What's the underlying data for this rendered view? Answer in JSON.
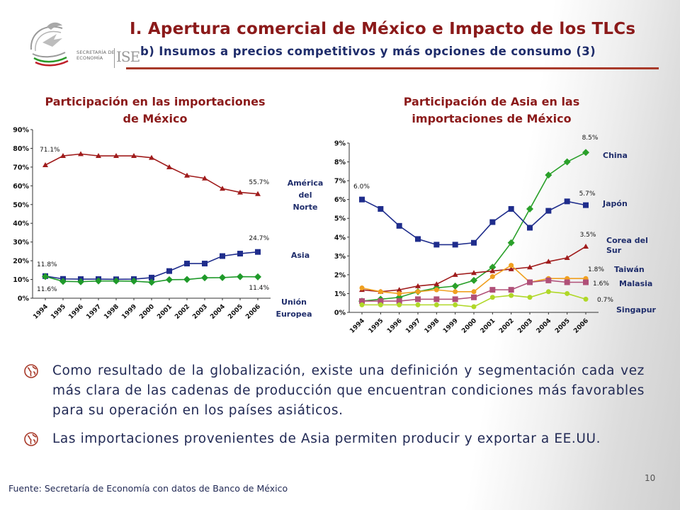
{
  "header": {
    "title": "I. Apertura comercial de México e Impacto de los TLCs",
    "subtitle": "b) Insumos a precios competitivos y más opciones de consumo (3)"
  },
  "logo": {
    "secretaria_line1": "SECRETARÍA DE",
    "secretaria_line2": "ECONOMÍA",
    "ise": "ISE"
  },
  "chart_data": [
    {
      "type": "line",
      "title": "Participación en las importaciones de México",
      "title_lines": [
        "Participación en las importaciones",
        "de México"
      ],
      "x": [
        "1994",
        "1995",
        "1996",
        "1997",
        "1998",
        "1999",
        "2000",
        "2001",
        "2002",
        "2003",
        "2004",
        "2005",
        "2006"
      ],
      "ylim": [
        0,
        90
      ],
      "yticks": [
        "0%",
        "10%",
        "20%",
        "30%",
        "40%",
        "50%",
        "60%",
        "70%",
        "80%",
        "90%"
      ],
      "grid": false,
      "series": [
        {
          "name": "América del Norte",
          "label_lines": [
            "América",
            "del",
            "Norte"
          ],
          "color": "#a01c1c",
          "marker": "triangle",
          "values": [
            71.1,
            76,
            77,
            76,
            76,
            76,
            75,
            70,
            65.5,
            64,
            58.5,
            56.5,
            55.7
          ]
        },
        {
          "name": "Asia",
          "label_lines": [
            "Asia"
          ],
          "color": "#1f2d8c",
          "marker": "square",
          "values": [
            11.8,
            10.3,
            10.2,
            10.2,
            10.1,
            10.2,
            11,
            14.5,
            18.5,
            18.5,
            22.5,
            23.8,
            24.7
          ]
        },
        {
          "name": "Unión Europea",
          "label_lines": [
            "Unión",
            "Europea"
          ],
          "color": "#1f9a2a",
          "marker": "diamond",
          "values": [
            11.6,
            9,
            8.8,
            9.2,
            9.2,
            9.1,
            8.5,
            9.9,
            10,
            10.9,
            11,
            11.5,
            11.4
          ]
        }
      ],
      "annotations": [
        "71.1%",
        "55.7%",
        "24.7%",
        "11.8%",
        "11.6%",
        "11.4%"
      ]
    },
    {
      "type": "line",
      "title": "Participación de Asia en las importaciones de México",
      "title_lines": [
        "Participación de Asia en las",
        "importaciones de México"
      ],
      "x": [
        "1994",
        "1995",
        "1996",
        "1997",
        "1998",
        "1999",
        "2000",
        "2001",
        "2002",
        "2003",
        "2004",
        "2005",
        "2006"
      ],
      "ylim": [
        0,
        9
      ],
      "yticks": [
        "0%",
        "1%",
        "2%",
        "3%",
        "4%",
        "5%",
        "6%",
        "7%",
        "8%",
        "9%"
      ],
      "grid": false,
      "series": [
        {
          "name": "China",
          "label_lines": [
            "China"
          ],
          "color": "#2aa02a",
          "marker": "diamond",
          "values": [
            0.6,
            0.7,
            0.8,
            1.1,
            1.3,
            1.4,
            1.7,
            2.4,
            3.7,
            5.5,
            7.3,
            8,
            8.5
          ]
        },
        {
          "name": "Japón",
          "label_lines": [
            "Japón"
          ],
          "color": "#1f2d8c",
          "marker": "square",
          "values": [
            6.0,
            5.5,
            4.6,
            3.9,
            3.6,
            3.6,
            3.7,
            4.8,
            5.5,
            4.5,
            5.4,
            5.9,
            5.7
          ]
        },
        {
          "name": "Corea del Sur",
          "label_lines": [
            "Corea del",
            "Sur"
          ],
          "color": "#a01c1c",
          "marker": "triangle",
          "values": [
            1.2,
            1.1,
            1.2,
            1.4,
            1.5,
            2.0,
            2.1,
            2.2,
            2.3,
            2.4,
            2.7,
            2.9,
            3.5
          ]
        },
        {
          "name": "Taiwán",
          "label_lines": [
            "Taiwán"
          ],
          "color": "#f0a020",
          "marker": "circle",
          "values": [
            1.3,
            1.1,
            1.0,
            1.1,
            1.2,
            1.1,
            1.1,
            1.9,
            2.5,
            1.6,
            1.8,
            1.8,
            1.8
          ]
        },
        {
          "name": "Malasia",
          "label_lines": [
            "Malasia"
          ],
          "color": "#b05078",
          "marker": "square",
          "values": [
            0.6,
            0.6,
            0.6,
            0.7,
            0.7,
            0.7,
            0.8,
            1.2,
            1.2,
            1.6,
            1.7,
            1.6,
            1.6
          ]
        },
        {
          "name": "Singapur",
          "label_lines": [
            "Singapur"
          ],
          "color": "#b0d828",
          "marker": "circle",
          "values": [
            0.4,
            0.4,
            0.4,
            0.4,
            0.4,
            0.4,
            0.3,
            0.8,
            0.9,
            0.8,
            1.1,
            1.0,
            0.7
          ]
        }
      ],
      "annotations": [
        "6.0%",
        "8.5%",
        "5.7%",
        "3.5%",
        "1.8%",
        "1.6%",
        "0.7%"
      ]
    }
  ],
  "bullets": [
    "Como resultado de la globalización, existe una definición y segmentación cada vez más clara de las cadenas de producción que encuentran condiciones más favorables para su operación en los países asiáticos.",
    "Las importaciones provenientes de Asia permiten producir y exportar a EE.UU."
  ],
  "source": "Fuente: Secretaría de Economía con datos de Banco de México",
  "page_number": "10"
}
